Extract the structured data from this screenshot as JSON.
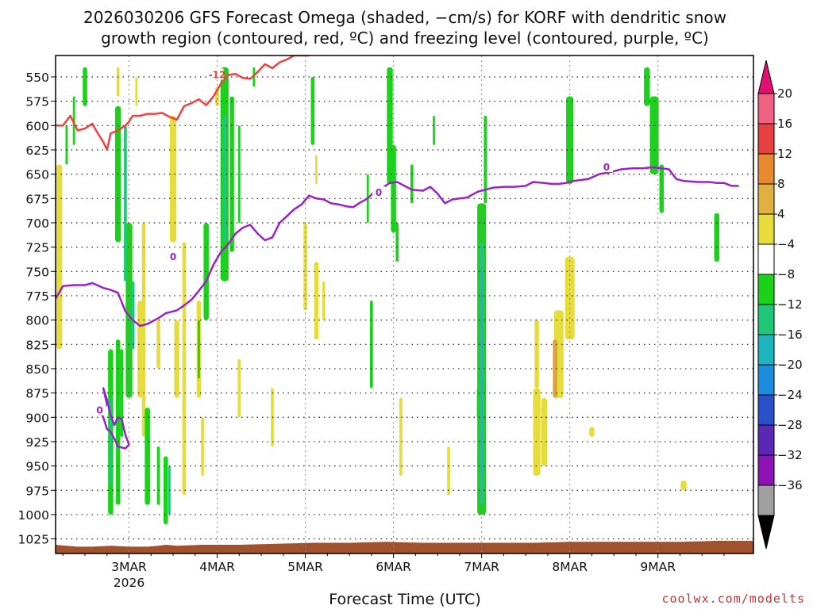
{
  "chart_data": {
    "type": "time-height",
    "title_line1": "2026030206 GFS Forecast Omega (shaded, −cm/s) for KORF with dendritic snow",
    "title_line2": "growth region (contoured, red, ºC) and freezing level (contoured, purple, ºC)",
    "xlabel": "Forecast Time (UTC)",
    "credit": "coolwx.com/modelts",
    "x_range_hours": [
      -20,
      170
    ],
    "ylim_hpa": [
      1040,
      528
    ],
    "y_ticks": [
      "550",
      "575",
      "600",
      "625",
      "650",
      "675",
      "700",
      "725",
      "750",
      "775",
      "800",
      "825",
      "850",
      "875",
      "900",
      "925",
      "950",
      "975",
      "1000",
      "1025"
    ],
    "x_ticks": [
      {
        "label": "3MAR",
        "sub": "2026",
        "hour": 0
      },
      {
        "label": "4MAR",
        "sub": "",
        "hour": 24
      },
      {
        "label": "5MAR",
        "sub": "",
        "hour": 48
      },
      {
        "label": "6MAR",
        "sub": "",
        "hour": 72
      },
      {
        "label": "7MAR",
        "sub": "",
        "hour": 96
      },
      {
        "label": "8MAR",
        "sub": "",
        "hour": 120
      },
      {
        "label": "9MAR",
        "sub": "",
        "hour": 144
      }
    ],
    "colorbar": {
      "labels": [
        "20",
        "16",
        "12",
        "8",
        "4",
        "−4",
        "−8",
        "−12",
        "−16",
        "−20",
        "−24",
        "−28",
        "−32",
        "−36"
      ],
      "colors": [
        "#f06080",
        "#e84040",
        "#e88a30",
        "#e0b040",
        "#e6dc3c",
        "#ffffff",
        "#19d219",
        "#1ec878",
        "#1eb4be",
        "#1e8cdc",
        "#2850c8",
        "#5a28b4",
        "#8c14b4",
        "#a0a0a0"
      ],
      "top_arrow_color": "#e0106e",
      "bottom_arrow_color": "#000000"
    },
    "series": [
      {
        "name": "freezing level 0C",
        "color": "#9a22c8",
        "label": "0",
        "label_points": [
          [
            12,
            735
          ],
          [
            68,
            669
          ],
          [
            130,
            643
          ]
        ],
        "points": [
          [
            -20,
            778
          ],
          [
            -18,
            765
          ],
          [
            -15,
            764
          ],
          [
            -12,
            764
          ],
          [
            -10,
            762
          ],
          [
            -7,
            767
          ],
          [
            -5,
            769
          ],
          [
            -3,
            772
          ],
          [
            -1,
            791
          ],
          [
            1,
            800
          ],
          [
            3,
            806
          ],
          [
            5,
            804
          ],
          [
            7,
            800
          ],
          [
            8,
            798
          ],
          [
            10,
            793
          ],
          [
            13,
            790
          ],
          [
            15,
            785
          ],
          [
            17,
            779
          ],
          [
            19,
            770
          ],
          [
            21,
            760
          ],
          [
            23,
            743
          ],
          [
            25,
            730
          ],
          [
            27,
            722
          ],
          [
            29,
            711
          ],
          [
            31,
            705
          ],
          [
            33,
            702
          ],
          [
            35,
            711
          ],
          [
            37,
            718
          ],
          [
            39,
            715
          ],
          [
            41,
            700
          ],
          [
            43,
            693
          ],
          [
            45,
            686
          ],
          [
            47,
            681
          ],
          [
            49,
            672
          ],
          [
            51,
            675
          ],
          [
            53,
            676
          ],
          [
            55,
            680
          ],
          [
            57,
            681
          ],
          [
            59,
            683
          ],
          [
            61,
            684
          ],
          [
            63,
            679
          ],
          [
            65,
            675
          ],
          [
            67,
            667
          ],
          [
            69,
            664
          ],
          [
            71,
            659
          ],
          [
            73,
            658
          ],
          [
            75,
            662
          ],
          [
            77,
            666
          ],
          [
            80,
            667
          ],
          [
            82,
            663
          ],
          [
            84,
            670
          ],
          [
            86,
            680
          ],
          [
            88,
            676
          ],
          [
            90,
            675
          ],
          [
            92,
            674
          ],
          [
            95,
            668
          ],
          [
            97,
            666
          ],
          [
            99,
            664
          ],
          [
            102,
            663
          ],
          [
            105,
            663
          ],
          [
            108,
            662
          ],
          [
            110,
            658
          ],
          [
            113,
            659
          ],
          [
            115,
            660
          ],
          [
            117,
            660
          ],
          [
            119,
            659
          ],
          [
            121,
            657
          ],
          [
            125,
            655
          ],
          [
            128,
            650
          ],
          [
            131,
            648
          ],
          [
            134,
            645
          ],
          [
            137,
            644
          ],
          [
            140,
            644
          ],
          [
            142,
            643
          ],
          [
            143,
            643
          ],
          [
            145,
            644
          ],
          [
            147,
            645
          ],
          [
            149,
            655
          ],
          [
            151,
            657
          ],
          [
            155,
            658
          ],
          [
            158,
            658
          ],
          [
            160,
            659
          ],
          [
            162,
            659
          ],
          [
            164,
            662
          ],
          [
            166,
            662
          ]
        ]
      },
      {
        "name": "freezing level 0C (low closed)",
        "color": "#9a22c8",
        "label": "0",
        "label_points": [
          [
            -8,
            893
          ]
        ],
        "points": [
          [
            -8,
            893
          ],
          [
            -6,
            887
          ],
          [
            -7,
            870
          ],
          [
            -6,
            882
          ],
          [
            -5,
            898
          ],
          [
            -4,
            908
          ],
          [
            -3,
            900
          ],
          [
            -2,
            902
          ],
          [
            -1,
            918
          ],
          [
            0,
            928
          ],
          [
            -1,
            932
          ],
          [
            -3,
            930
          ],
          [
            -4,
            922
          ],
          [
            -5,
            915
          ],
          [
            -6,
            912
          ],
          [
            -7,
            900
          ],
          [
            -8,
            893
          ]
        ]
      },
      {
        "name": "dendritic -12C",
        "color": "#f04040",
        "label": "-12",
        "label_points": [
          [
            24,
            548
          ]
        ],
        "points": [
          [
            -20,
            600
          ],
          [
            -18,
            600
          ],
          [
            -16,
            590
          ],
          [
            -14,
            605
          ],
          [
            -12,
            603
          ],
          [
            -10,
            598
          ],
          [
            -9,
            605
          ],
          [
            -7,
            617
          ],
          [
            -6,
            625
          ],
          [
            -5,
            608
          ],
          [
            -3,
            605
          ],
          [
            -1,
            600
          ],
          [
            0,
            596
          ],
          [
            1,
            590
          ],
          [
            3,
            590
          ],
          [
            5,
            588
          ],
          [
            7,
            588
          ],
          [
            9,
            587
          ],
          [
            11,
            591
          ],
          [
            13,
            594
          ],
          [
            15,
            580
          ],
          [
            17,
            577
          ],
          [
            19,
            573
          ],
          [
            21,
            579
          ],
          [
            23,
            570
          ],
          [
            25,
            557
          ],
          [
            27,
            548
          ],
          [
            29,
            547
          ],
          [
            31,
            551
          ],
          [
            33,
            552
          ],
          [
            35,
            545
          ],
          [
            37,
            537
          ],
          [
            39,
            541
          ],
          [
            41,
            535
          ],
          [
            43,
            532
          ],
          [
            45,
            528
          ],
          [
            47,
            528
          ],
          [
            49,
            528
          ]
        ]
      }
    ],
    "omega_shading": {
      "note": "shaded regions approximated as polygons in data units [hour, hPa]; value = -omega category",
      "surface_fill_color": "#a0522d"
    }
  }
}
